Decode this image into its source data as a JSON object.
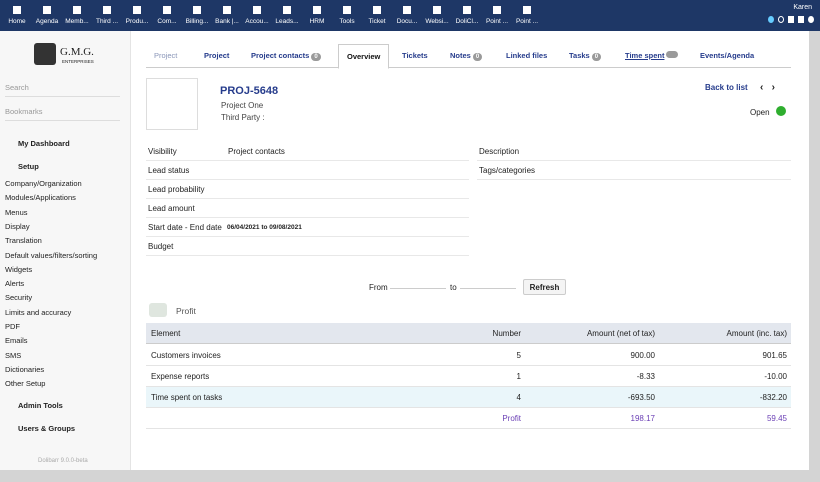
{
  "topbar": {
    "menu": [
      "Home",
      "Agenda",
      "Memb...",
      "Third ...",
      "Produ...",
      "Com...",
      "Billing...",
      "Bank |...",
      "Accou...",
      "Leads...",
      "HRM",
      "Tools",
      "Ticket",
      "Docu...",
      "Websi...",
      "DoliCl...",
      "Point ...",
      "Point ..."
    ],
    "user": "Karen"
  },
  "sidebar": {
    "logo": {
      "name": "G.M.G.",
      "sub": "ENTERPRISES"
    },
    "search": "Search",
    "bookmarks": "Bookmarks",
    "dashboard": "My Dashboard",
    "setup": {
      "title": "Setup",
      "items": [
        "Company/Organization",
        "Modules/Applications",
        "Menus",
        "Display",
        "Translation",
        "Default values/filters/sorting",
        "Widgets",
        "Alerts",
        "Security",
        "Limits and accuracy",
        "PDF",
        "Emails",
        "SMS",
        "Dictionaries",
        "Other Setup"
      ]
    },
    "admin_tools": "Admin Tools",
    "users_groups": "Users & Groups",
    "version": "Dolibarr 9.0.0-beta"
  },
  "tabs": [
    {
      "label": "Project"
    },
    {
      "label": "Project"
    },
    {
      "label": "Project contacts",
      "badge": 0
    },
    {
      "label": "Overview"
    },
    {
      "label": "Tickets"
    },
    {
      "label": "Notes",
      "badge": 0
    },
    {
      "label": "Linked files"
    },
    {
      "label": "Tasks",
      "badge": 0
    },
    {
      "label": "Time spent"
    },
    {
      "label": "Events/Agenda"
    }
  ],
  "project": {
    "ref": "PROJ-5648",
    "label": "Project One",
    "third_party": "Third Party :",
    "back": "Back to list",
    "status": "Open"
  },
  "fields": {
    "left": [
      {
        "label": "Visibility",
        "value": "Project contacts"
      },
      {
        "label": "Lead status"
      },
      {
        "label": "Lead probability"
      },
      {
        "label": "Lead amount"
      },
      {
        "label": "Start date - End date",
        "value": "06/04/2021 to 09/08/2021"
      },
      {
        "label": "Budget"
      }
    ],
    "right": [
      "Description",
      "Tags/categories"
    ]
  },
  "filter": {
    "from": "From",
    "to": "to",
    "button": "Refresh"
  },
  "profit": {
    "title": "Profit",
    "headers": [
      "Element",
      "Number",
      "Amount (net of tax)",
      "Amount (inc. tax)"
    ],
    "rows": [
      [
        "Customers invoices",
        5,
        "900.00",
        "901.65"
      ],
      [
        "Expense reports",
        1,
        "-8.33",
        "-10.00"
      ],
      [
        "Time spent on tasks",
        4,
        "-693.50",
        "-832.20"
      ]
    ],
    "total": {
      "label": "Profit",
      "net": "198.17",
      "inc": "59.45"
    }
  }
}
